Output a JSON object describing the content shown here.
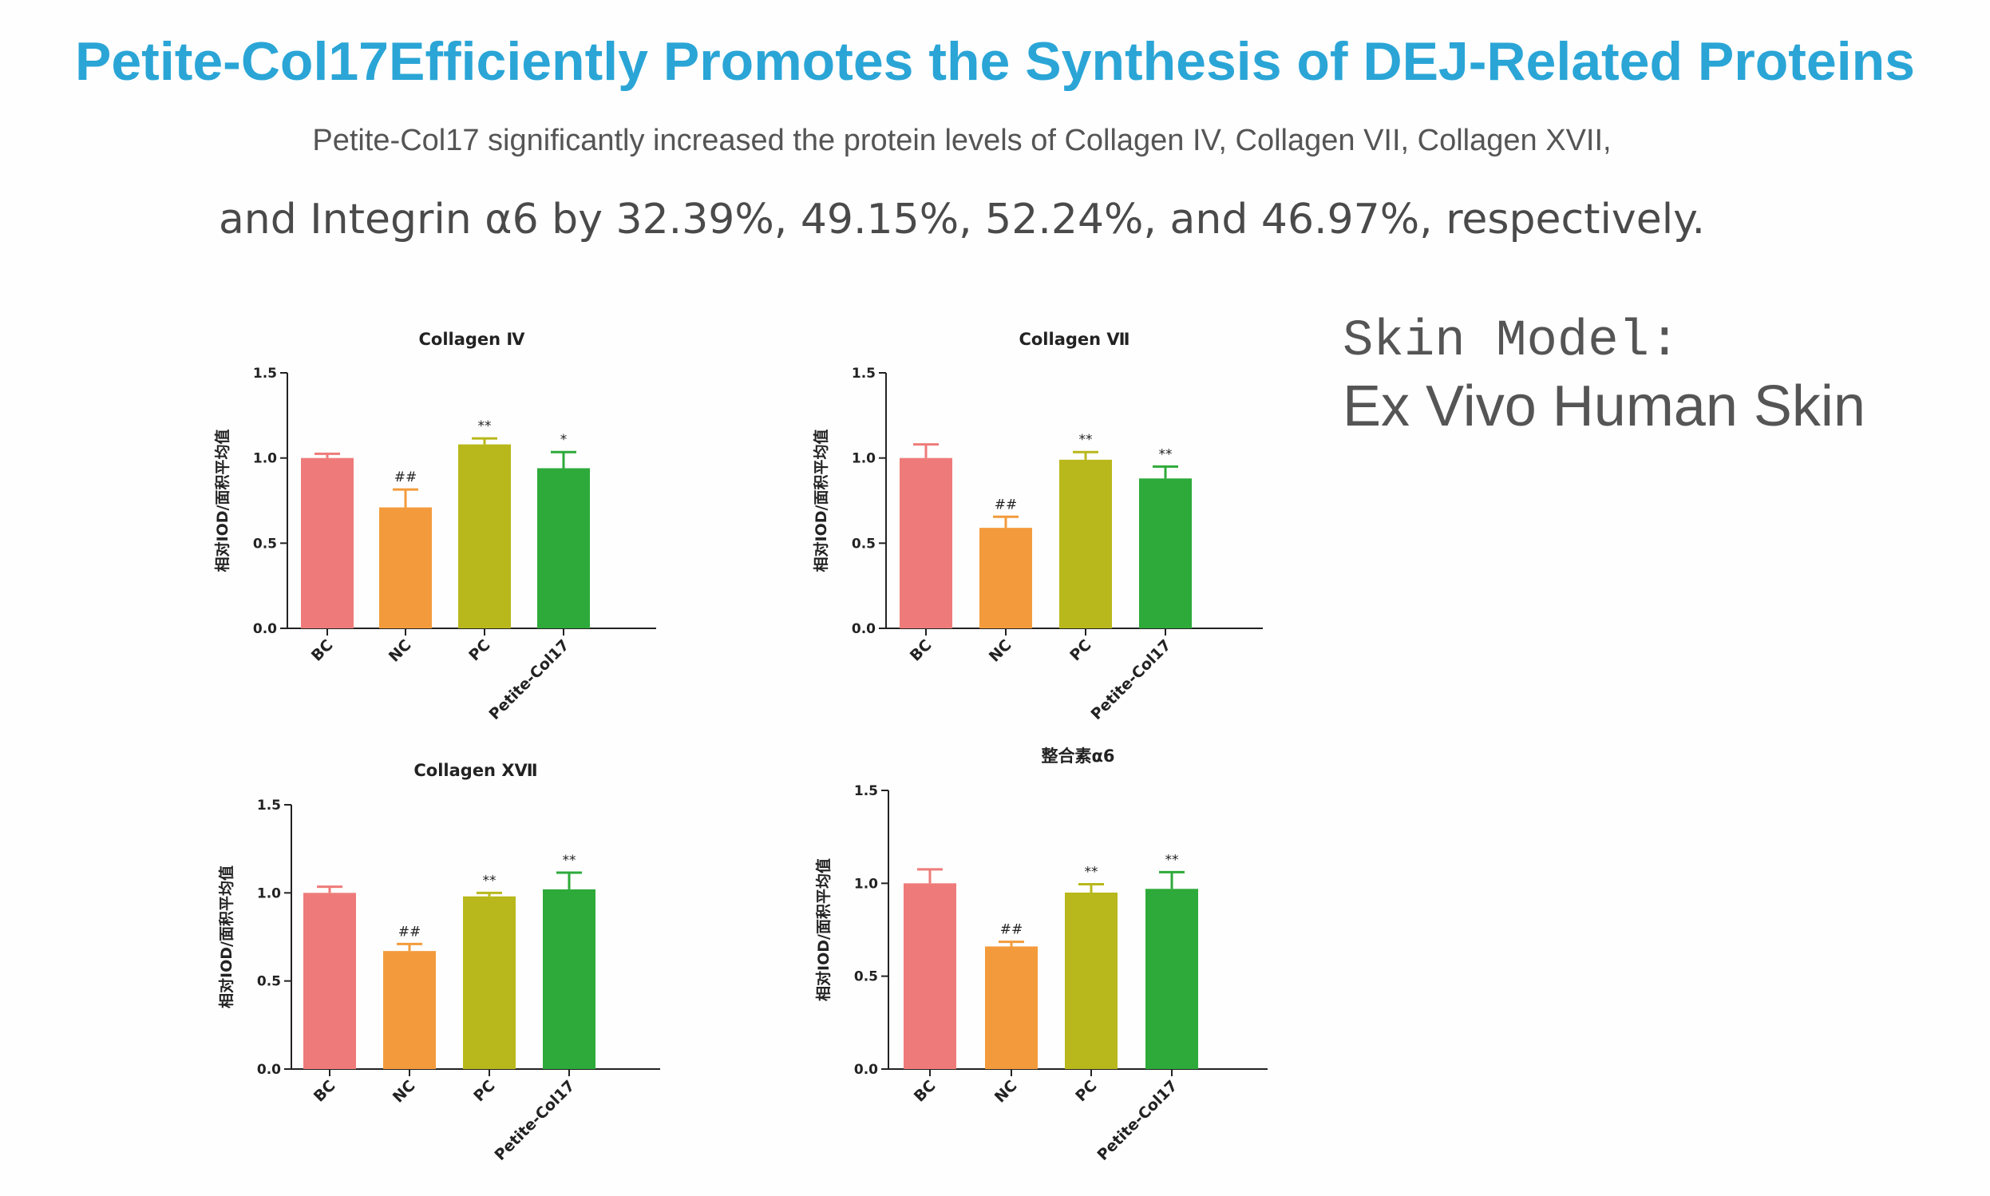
{
  "header": {
    "title": "Petite-Col17Efficiently Promotes the Synthesis of DEJ-Related Proteins",
    "subtitle_line1": "Petite-Col17 significantly increased the protein levels of Collagen IV, Collagen VII, Collagen XVII,",
    "subtitle_line2": "and Integrin α6 by 32.39%, 49.15%, 52.24%, and 46.97%, respectively."
  },
  "model": {
    "label": "Skin Model:",
    "value": "Ex Vivo Human Skin"
  },
  "colors": {
    "title": "#2aa5d6",
    "bars": [
      "#ee7b79",
      "#f39b3c",
      "#b8b81c",
      "#2daa3a"
    ]
  },
  "chart_data": [
    {
      "type": "bar",
      "title": "Collagen Ⅳ",
      "ylabel": "相对IOD/面积平均值",
      "xlabel": "",
      "categories": [
        "BC",
        "NC",
        "PC",
        "Petite-Col17"
      ],
      "values": [
        1.0,
        0.71,
        1.08,
        0.94
      ],
      "errors": [
        0.025,
        0.105,
        0.035,
        0.095
      ],
      "significance": [
        "",
        "##",
        "**",
        "*"
      ],
      "ylim": [
        0,
        1.5
      ],
      "yticks": [
        "0.0",
        "0.5",
        "1.0",
        "1.5"
      ]
    },
    {
      "type": "bar",
      "title": "Collagen Ⅶ",
      "ylabel": "相对IOD/面积平均值",
      "xlabel": "",
      "categories": [
        "BC",
        "NC",
        "PC",
        "Petite-Col17"
      ],
      "values": [
        1.0,
        0.59,
        0.99,
        0.88
      ],
      "errors": [
        0.08,
        0.065,
        0.045,
        0.07
      ],
      "significance": [
        "",
        "##",
        "**",
        "**"
      ],
      "ylim": [
        0,
        1.5
      ],
      "yticks": [
        "0.0",
        "0.5",
        "1.0",
        "1.5"
      ]
    },
    {
      "type": "bar",
      "title": "Collagen ⅩⅦ",
      "ylabel": "相对IOD/面积平均值",
      "xlabel": "",
      "categories": [
        "BC",
        "NC",
        "PC",
        "Petite-Col17"
      ],
      "values": [
        1.0,
        0.67,
        0.98,
        1.02
      ],
      "errors": [
        0.035,
        0.04,
        0.02,
        0.095
      ],
      "significance": [
        "",
        "##",
        "**",
        "**"
      ],
      "ylim": [
        0,
        1.5
      ],
      "yticks": [
        "0.0",
        "0.5",
        "1.0",
        "1.5"
      ]
    },
    {
      "type": "bar",
      "title": "整合素α6",
      "ylabel": "相对IOD/面积平均值",
      "xlabel": "",
      "categories": [
        "BC",
        "NC",
        "PC",
        "Petite-Col17"
      ],
      "values": [
        1.0,
        0.66,
        0.95,
        0.97
      ],
      "errors": [
        0.075,
        0.025,
        0.045,
        0.09
      ],
      "significance": [
        "",
        "##",
        "**",
        "**"
      ],
      "ylim": [
        0,
        1.5
      ],
      "yticks": [
        "0.0",
        "0.5",
        "1.0",
        "1.5"
      ]
    }
  ]
}
